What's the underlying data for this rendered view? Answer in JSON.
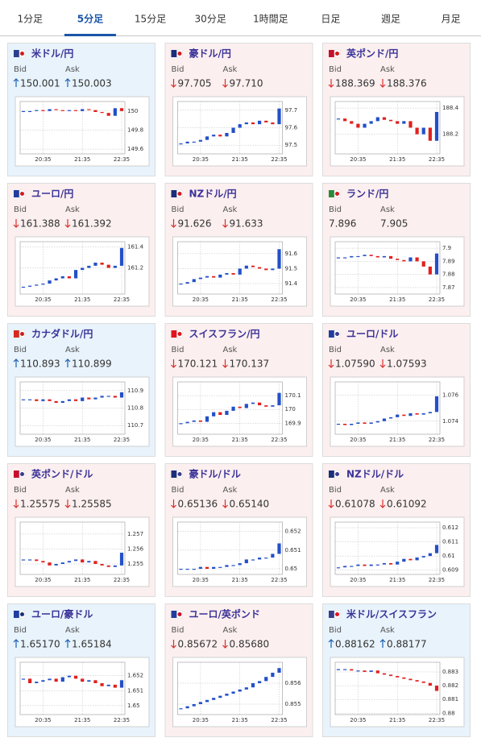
{
  "tabs": [
    "1分足",
    "5分足",
    "15分足",
    "30分足",
    "1時間足",
    "日足",
    "週足",
    "月足"
  ],
  "active_tab": 1,
  "labels": {
    "bid": "Bid",
    "ask": "Ask"
  },
  "xlim": [
    0,
    15
  ],
  "xticks": [
    {
      "value": 3,
      "label": "20:35"
    },
    {
      "value": 9,
      "label": "21:35"
    },
    {
      "value": 15,
      "label": "22:35"
    }
  ],
  "cards": [
    {
      "name": "米ドル/円",
      "flag_colors": [
        "#2a3f8f",
        "#d01c1f"
      ],
      "trend": "up",
      "bid": "150.001",
      "ask": "150.003",
      "chart": {
        "type": "candlestick",
        "ylim": [
          149.55,
          150.1
        ],
        "yticks": [
          150,
          149.8,
          149.6
        ],
        "values": [
          150.0,
          150.0,
          150.01,
          150.0,
          150.02,
          150.01,
          150.0,
          150.01,
          150.0,
          150.02,
          150.01,
          149.99,
          149.98,
          149.95,
          150.03,
          150.0
        ]
      }
    },
    {
      "name": "豪ドル/円",
      "flag_colors": [
        "#1a2f7a",
        "#d01c1f"
      ],
      "trend": "down",
      "bid": "97.705",
      "ask": "97.710",
      "chart": {
        "type": "candlestick",
        "ylim": [
          97.45,
          97.75
        ],
        "yticks": [
          97.7,
          97.6,
          97.5
        ],
        "values": [
          97.51,
          97.52,
          97.52,
          97.53,
          97.55,
          97.56,
          97.55,
          97.57,
          97.6,
          97.62,
          97.63,
          97.62,
          97.64,
          97.63,
          97.62,
          97.71
        ]
      }
    },
    {
      "name": "英ポンド/円",
      "flag_colors": [
        "#c8102e",
        "#d01c1f"
      ],
      "trend": "down",
      "bid": "188.369",
      "ask": "188.376",
      "chart": {
        "type": "candlestick",
        "ylim": [
          188.05,
          188.45
        ],
        "yticks": [
          188.4,
          188.2
        ],
        "values": [
          188.32,
          188.3,
          188.28,
          188.25,
          188.28,
          188.3,
          188.33,
          188.31,
          188.3,
          188.28,
          188.3,
          188.25,
          188.2,
          188.25,
          188.15,
          188.37
        ]
      }
    },
    {
      "name": "ユーロ/円",
      "flag_colors": [
        "#1f3ea0",
        "#d01c1f"
      ],
      "trend": "down",
      "bid": "161.388",
      "ask": "161.392",
      "chart": {
        "type": "candlestick",
        "ylim": [
          160.95,
          161.45
        ],
        "yticks": [
          161.4,
          161.2
        ],
        "values": [
          161.02,
          161.03,
          161.04,
          161.05,
          161.08,
          161.1,
          161.12,
          161.1,
          161.18,
          161.2,
          161.22,
          161.25,
          161.23,
          161.2,
          161.22,
          161.39
        ]
      }
    },
    {
      "name": "NZドル/円",
      "flag_colors": [
        "#1a2f7a",
        "#d01c1f"
      ],
      "trend": "down",
      "bid": "91.626",
      "ask": "91.633",
      "chart": {
        "type": "candlestick",
        "ylim": [
          91.33,
          91.68
        ],
        "yticks": [
          91.6,
          91.5,
          91.4
        ],
        "values": [
          91.4,
          91.41,
          91.43,
          91.44,
          91.45,
          91.44,
          91.46,
          91.47,
          91.46,
          91.5,
          91.52,
          91.51,
          91.5,
          91.49,
          91.5,
          91.63
        ]
      }
    },
    {
      "name": "ランド/円",
      "flag_colors": [
        "#2a8a3a",
        "#d01c1f"
      ],
      "trend": "none",
      "bid": "7.896",
      "ask": "7.905",
      "chart": {
        "type": "candlestick",
        "ylim": [
          7.865,
          7.905
        ],
        "yticks": [
          7.9,
          7.89,
          7.88,
          7.87
        ],
        "values": [
          7.893,
          7.893,
          7.894,
          7.894,
          7.895,
          7.894,
          7.893,
          7.894,
          7.892,
          7.891,
          7.89,
          7.893,
          7.89,
          7.886,
          7.88,
          7.896
        ]
      }
    },
    {
      "name": "カナダドル/円",
      "flag_colors": [
        "#d52b1e",
        "#d01c1f"
      ],
      "trend": "up",
      "bid": "110.893",
      "ask": "110.899",
      "chart": {
        "type": "candlestick",
        "ylim": [
          110.65,
          110.95
        ],
        "yticks": [
          110.9,
          110.8,
          110.7
        ],
        "values": [
          110.85,
          110.85,
          110.84,
          110.85,
          110.84,
          110.83,
          110.84,
          110.85,
          110.84,
          110.86,
          110.85,
          110.86,
          110.87,
          110.87,
          110.86,
          110.89
        ]
      }
    },
    {
      "name": "スイスフラン/円",
      "flag_colors": [
        "#e0141e",
        "#e0141e"
      ],
      "trend": "down",
      "bid": "170.121",
      "ask": "170.137",
      "chart": {
        "type": "candlestick",
        "ylim": [
          169.82,
          170.2
        ],
        "yticks": [
          170.1,
          170,
          169.9
        ],
        "values": [
          169.9,
          169.91,
          169.92,
          169.91,
          169.95,
          169.98,
          169.96,
          169.99,
          170.02,
          170.01,
          170.04,
          170.05,
          170.03,
          170.02,
          170.03,
          170.12
        ]
      }
    },
    {
      "name": "ユーロ/ドル",
      "flag_colors": [
        "#1f3ea0",
        "#3c3b8e"
      ],
      "trend": "down",
      "bid": "1.07590",
      "ask": "1.07593",
      "chart": {
        "type": "candlestick",
        "ylim": [
          1.073,
          1.077
        ],
        "yticks": [
          1.076,
          1.074
        ],
        "values": [
          1.0738,
          1.0737,
          1.0738,
          1.0739,
          1.0738,
          1.0739,
          1.074,
          1.0742,
          1.0743,
          1.0745,
          1.0744,
          1.0746,
          1.0745,
          1.0746,
          1.0747,
          1.0759
        ]
      }
    },
    {
      "name": "英ポンド/ドル",
      "flag_colors": [
        "#c8102e",
        "#3c3b8e"
      ],
      "trend": "down",
      "bid": "1.25575",
      "ask": "1.25585",
      "chart": {
        "type": "candlestick",
        "ylim": [
          1.2543,
          1.2578
        ],
        "yticks": [
          1.257,
          1.256,
          1.255
        ],
        "values": [
          1.2553,
          1.2553,
          1.2552,
          1.2551,
          1.2549,
          1.255,
          1.2551,
          1.2552,
          1.2553,
          1.2551,
          1.2552,
          1.255,
          1.2549,
          1.2548,
          1.2549,
          1.25575
        ]
      }
    },
    {
      "name": "豪ドル/ドル",
      "flag_colors": [
        "#1a2f7a",
        "#3c3b8e"
      ],
      "trend": "down",
      "bid": "0.65136",
      "ask": "0.65140",
      "chart": {
        "type": "candlestick",
        "ylim": [
          0.6497,
          0.6525
        ],
        "yticks": [
          0.652,
          0.651,
          0.65
        ],
        "values": [
          0.65,
          0.65,
          0.65,
          0.6501,
          0.65,
          0.6501,
          0.6501,
          0.6502,
          0.6502,
          0.6503,
          0.6505,
          0.6505,
          0.6506,
          0.6506,
          0.6508,
          0.65136
        ]
      }
    },
    {
      "name": "NZドル/ドル",
      "flag_colors": [
        "#1a2f7a",
        "#3c3b8e"
      ],
      "trend": "down",
      "bid": "0.61078",
      "ask": "0.61092",
      "chart": {
        "type": "candlestick",
        "ylim": [
          0.6087,
          0.6124
        ],
        "yticks": [
          0.612,
          0.611,
          0.61,
          0.609
        ],
        "values": [
          0.6092,
          0.6093,
          0.6093,
          0.6094,
          0.6093,
          0.6094,
          0.6094,
          0.6095,
          0.6094,
          0.6096,
          0.6098,
          0.6097,
          0.6099,
          0.61,
          0.6102,
          0.61078
        ]
      }
    },
    {
      "name": "ユーロ/豪ドル",
      "flag_colors": [
        "#1f3ea0",
        "#1a2f7a"
      ],
      "trend": "up",
      "bid": "1.65170",
      "ask": "1.65184",
      "chart": {
        "type": "candlestick",
        "ylim": [
          1.6494,
          1.6529
        ],
        "yticks": [
          1.652,
          1.651,
          1.65
        ],
        "values": [
          1.6518,
          1.6515,
          1.6516,
          1.6517,
          1.6518,
          1.6516,
          1.6519,
          1.652,
          1.6518,
          1.6516,
          1.6517,
          1.6515,
          1.6513,
          1.6514,
          1.6512,
          1.6517
        ]
      }
    },
    {
      "name": "ユーロ/英ポンド",
      "flag_colors": [
        "#1f3ea0",
        "#c8102e"
      ],
      "trend": "down",
      "bid": "0.85672",
      "ask": "0.85680",
      "chart": {
        "type": "candlestick",
        "ylim": [
          0.8545,
          0.857
        ],
        "yticks": [
          0.856,
          0.855
        ],
        "values": [
          0.8548,
          0.8549,
          0.855,
          0.8551,
          0.8552,
          0.8553,
          0.8554,
          0.8555,
          0.8556,
          0.8557,
          0.8558,
          0.856,
          0.8561,
          0.8563,
          0.8565,
          0.85672
        ]
      }
    },
    {
      "name": "米ドル/スイスフラン",
      "flag_colors": [
        "#3c3b8e",
        "#e0141e"
      ],
      "trend": "up",
      "bid": "0.88162",
      "ask": "0.88177",
      "chart": {
        "type": "candlestick",
        "ylim": [
          0.8799,
          0.8837
        ],
        "yticks": [
          0.883,
          0.882,
          0.881,
          0.88
        ],
        "values": [
          0.8832,
          0.8832,
          0.8831,
          0.8831,
          0.883,
          0.8831,
          0.8829,
          0.8828,
          0.8827,
          0.8826,
          0.8825,
          0.8824,
          0.8823,
          0.8822,
          0.882,
          0.88162
        ]
      }
    }
  ]
}
